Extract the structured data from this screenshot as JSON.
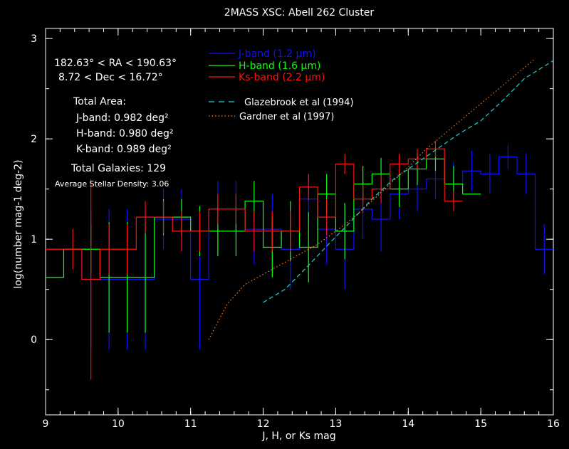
{
  "chart_data": {
    "type": "line",
    "title": "2MASS XSC: Abell 262 Cluster",
    "xlabel": "J, H, or Ks mag",
    "ylabel": "log(number mag-1 deg-2)",
    "xlim": [
      9,
      16
    ],
    "ylim": [
      -0.75,
      3.1
    ],
    "x_ticks": [
      "9",
      "10",
      "11",
      "12",
      "13",
      "14",
      "15",
      "16"
    ],
    "y_ticks": [
      "0",
      "1",
      "2",
      "3"
    ],
    "grid": false,
    "legend": "top-center",
    "info": {
      "ra": "182.63° < RA < 190.63°",
      "dec": "8.72 < Dec < 16.72°",
      "area_title": "Total Area:",
      "area_j": "J-band: 0.982 deg²",
      "area_h": "H-band: 0.980 deg²",
      "area_k": "K-band: 0.989 deg²",
      "total": "Total Galaxies: 129",
      "density": "Average Stellar Density: 3.06"
    },
    "series": [
      {
        "name": "J-band (1.2 μm)",
        "color": "#1010ff",
        "x": [
          9.125,
          9.375,
          9.625,
          9.875,
          10.125,
          10.375,
          10.625,
          10.875,
          11.125,
          11.375,
          11.625,
          11.875,
          12.125,
          12.375,
          12.625,
          12.875,
          13.125,
          13.375,
          13.625,
          13.875,
          14.125,
          14.375,
          14.625,
          14.875,
          15.125,
          15.375,
          15.625,
          15.875
        ],
        "y": [
          0.9,
          0.9,
          0.6,
          0.6,
          0.6,
          0.6,
          1.2,
          1.2,
          0.6,
          1.3,
          1.3,
          1.1,
          1.1,
          0.9,
          1.4,
          1.1,
          0.9,
          1.3,
          1.2,
          1.45,
          1.5,
          1.6,
          1.55,
          1.68,
          1.65,
          1.82,
          1.65,
          0.9
        ],
        "err": [
          0,
          0,
          0.7,
          0.7,
          0.7,
          0.7,
          0.3,
          0.3,
          0.7,
          0.28,
          0.28,
          0.35,
          0.35,
          0.4,
          0.25,
          0.35,
          0.4,
          0.3,
          0.32,
          0.25,
          0.22,
          0.2,
          0.22,
          0.2,
          0.2,
          0.12,
          0.2,
          0.25
        ]
      },
      {
        "name": "H-band (1.6 μm)",
        "color": "#10ff10",
        "x": [
          9.125,
          9.375,
          9.625,
          9.875,
          10.125,
          10.375,
          10.625,
          10.875,
          11.125,
          11.375,
          11.625,
          11.875,
          12.125,
          12.375,
          12.625,
          12.875,
          13.125,
          13.375,
          13.625,
          13.875,
          14.125,
          14.375,
          14.625,
          14.875
        ],
        "y": [
          0.62,
          0.9,
          0.9,
          0.62,
          0.62,
          0.62,
          1.22,
          1.22,
          1.08,
          1.08,
          1.08,
          1.38,
          0.92,
          1.08,
          0.92,
          1.45,
          1.08,
          1.55,
          1.65,
          1.5,
          1.7,
          1.8,
          1.55,
          1.45
        ],
        "err": [
          0,
          0,
          0.25,
          0.55,
          0.55,
          0.55,
          0.18,
          0.18,
          0.25,
          0.25,
          0.25,
          0.2,
          0.3,
          0.3,
          0.35,
          0.2,
          0.28,
          0.18,
          0.16,
          0.18,
          0.16,
          0.12,
          0.18,
          0
        ]
      },
      {
        "name": "Ks-band (2.2 μm)",
        "color": "#ff1010",
        "x": [
          9.125,
          9.375,
          9.625,
          9.875,
          10.125,
          10.375,
          10.625,
          10.875,
          11.125,
          11.375,
          11.625,
          11.875,
          12.125,
          12.375,
          12.625,
          12.875,
          13.125,
          13.375,
          13.625,
          13.875,
          14.125,
          14.375,
          14.625
        ],
        "y": [
          0.9,
          0.9,
          0.6,
          0.9,
          0.9,
          1.22,
          1.22,
          1.08,
          1.08,
          1.3,
          1.3,
          1.08,
          1.08,
          1.08,
          1.52,
          1.22,
          1.75,
          1.4,
          1.5,
          1.75,
          1.8,
          1.9,
          1.38
        ],
        "err": [
          0,
          0.2,
          1.0,
          0.25,
          0.25,
          0.16,
          0.16,
          0.2,
          0.2,
          0.15,
          0.15,
          0.2,
          0.2,
          0.2,
          0.13,
          0.18,
          0.1,
          0.14,
          0.14,
          0.1,
          0.1,
          0.08,
          0.1
        ]
      },
      {
        "name": "Glazebrook et al (1994)",
        "color": "#20d0d0",
        "style": "dashed",
        "x": [
          12.0,
          12.3,
          12.6,
          12.9,
          13.2,
          13.5,
          13.8,
          14.1,
          14.4,
          14.7,
          15.0,
          15.3,
          15.6,
          16.0
        ],
        "y": [
          0.37,
          0.5,
          0.72,
          0.95,
          1.17,
          1.4,
          1.6,
          1.75,
          1.9,
          2.05,
          2.18,
          2.38,
          2.6,
          2.78
        ]
      },
      {
        "name": "Gardner et al (1997)",
        "color": "#ff8020",
        "style": "dotted",
        "x": [
          11.25,
          11.5,
          11.75,
          12.0,
          12.25,
          12.5,
          12.75,
          13.0,
          13.25,
          13.5,
          13.75,
          14.0,
          14.25,
          14.5,
          14.75,
          15.0,
          15.25,
          15.5,
          15.75
        ],
        "y": [
          0.0,
          0.35,
          0.55,
          0.65,
          0.75,
          0.85,
          0.95,
          1.08,
          1.22,
          1.38,
          1.55,
          1.72,
          1.9,
          2.05,
          2.2,
          2.35,
          2.5,
          2.65,
          2.8
        ]
      }
    ]
  }
}
